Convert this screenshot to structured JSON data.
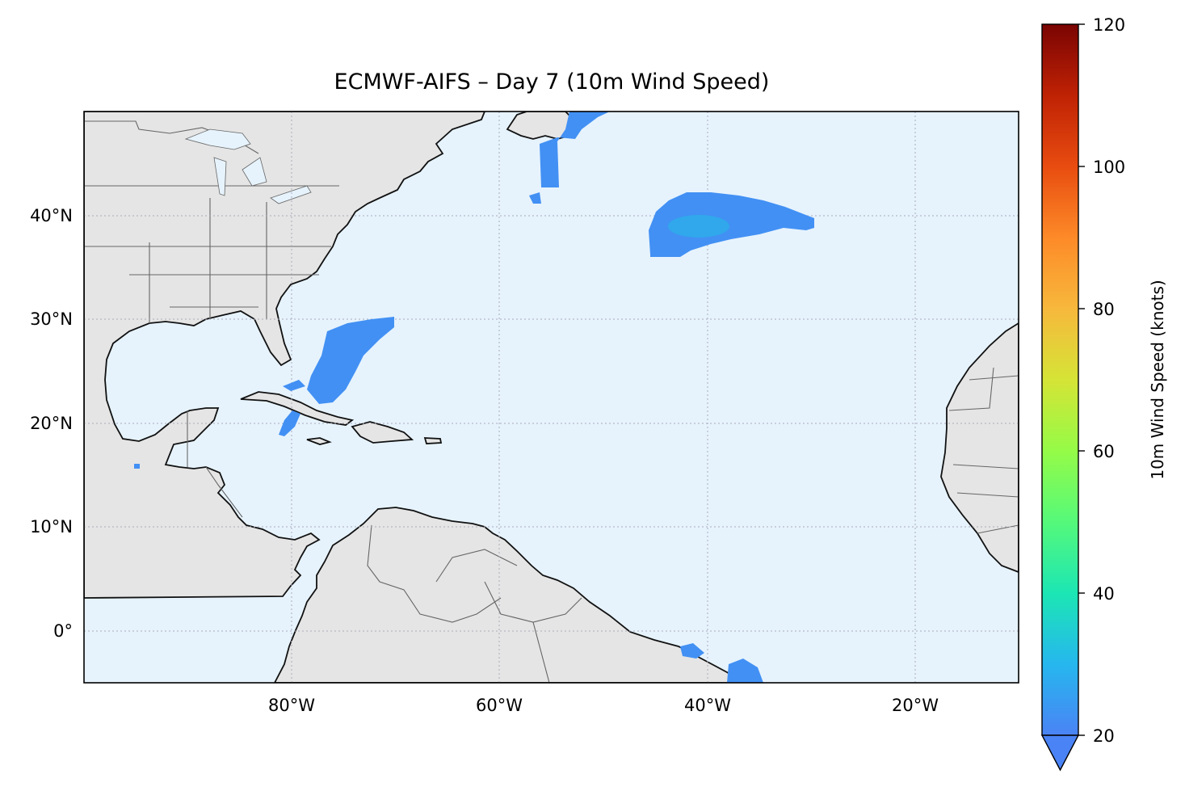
{
  "title": "ECMWF-AIFS – Day 7 (10m Wind Speed)",
  "map": {
    "extent": {
      "lon_min": -100,
      "lon_max": -10,
      "lat_min": -5,
      "lat_max": 50
    },
    "ocean_color": "#e6f3fd",
    "land_color": "#e5e5e5",
    "gridlines": "dotted",
    "lon_ticks": [
      {
        "value": -80,
        "label": "80°W"
      },
      {
        "value": -60,
        "label": "60°W"
      },
      {
        "value": -40,
        "label": "40°W"
      },
      {
        "value": -20,
        "label": "20°W"
      }
    ],
    "lat_ticks": [
      {
        "value": 40,
        "label": "40°N"
      },
      {
        "value": 30,
        "label": "30°N"
      },
      {
        "value": 20,
        "label": "20°N"
      },
      {
        "value": 10,
        "label": "10°N"
      },
      {
        "value": 0,
        "label": "0°"
      }
    ]
  },
  "wind_regions": [
    {
      "name": "central-atlantic-wind-area",
      "min_knots": 20,
      "max_knots": 28
    },
    {
      "name": "bahamas-wind-area",
      "min_knots": 20,
      "max_knots": 23
    },
    {
      "name": "newfoundland-wind-area",
      "min_knots": 20,
      "max_knots": 22
    },
    {
      "name": "brazil-coast-wind-area",
      "min_knots": 20,
      "max_knots": 22
    }
  ],
  "colorbar": {
    "label": "10m Wind Speed (knots)",
    "min": 20,
    "max": 120,
    "extend": "min",
    "ticks": [
      20,
      40,
      60,
      80,
      100,
      120
    ],
    "tick_labels": [
      "20",
      "40",
      "60",
      "80",
      "100",
      "120"
    ],
    "colormap_stops": [
      "#4a83f5",
      "#26b7ee",
      "#1ce6b4",
      "#55f97a",
      "#95fb47",
      "#d5e436",
      "#f7b83c",
      "#fd8a28",
      "#e84c10",
      "#bf2204",
      "#7a0403"
    ]
  }
}
